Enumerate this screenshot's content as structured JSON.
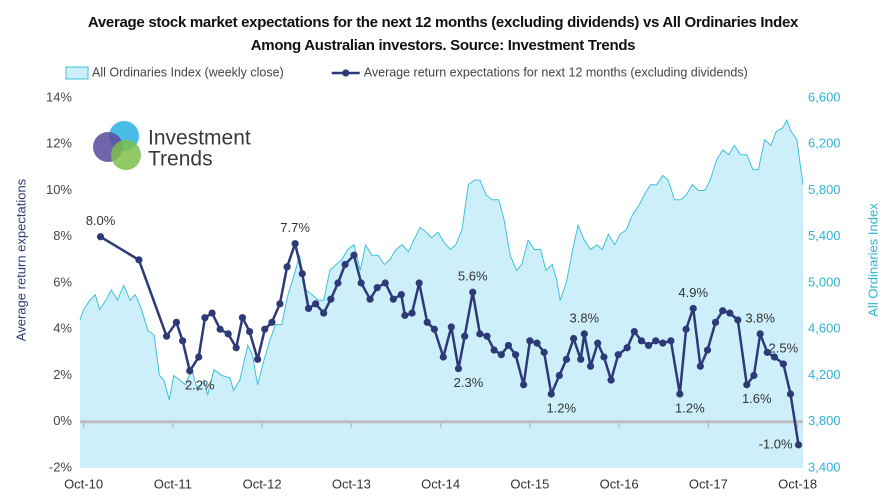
{
  "chart_data": {
    "type": "combo",
    "title": "Average stock market expectations for the next 12 months (excluding dividends) vs All Ordinaries Index",
    "subtitle": "Among Australian investors. Source: Investment Trends",
    "logo_text": [
      "Investment",
      "Trends"
    ],
    "y_label": "Average return expectations",
    "y2_label": "All Ordinaries Index",
    "xlim": [
      2010.71,
      2018.81
    ],
    "xticks": [
      {
        "value": 2010.75,
        "label": "Oct-10"
      },
      {
        "value": 2011.75,
        "label": "Oct-11"
      },
      {
        "value": 2012.75,
        "label": "Oct-12"
      },
      {
        "value": 2013.75,
        "label": "Oct-13"
      },
      {
        "value": 2014.75,
        "label": "Oct-14"
      },
      {
        "value": 2015.75,
        "label": "Oct-15"
      },
      {
        "value": 2016.75,
        "label": "Oct-16"
      },
      {
        "value": 2017.75,
        "label": "Oct-17"
      },
      {
        "value": 2018.75,
        "label": "Oct-18"
      }
    ],
    "ylim": [
      -2,
      14
    ],
    "yticks": [
      {
        "value": -2,
        "label": "-2%"
      },
      {
        "value": 0,
        "label": "0%"
      },
      {
        "value": 2,
        "label": "2%"
      },
      {
        "value": 4,
        "label": "4%"
      },
      {
        "value": 6,
        "label": "6%"
      },
      {
        "value": 8,
        "label": "8%"
      },
      {
        "value": 10,
        "label": "10%"
      },
      {
        "value": 12,
        "label": "12%"
      },
      {
        "value": 14,
        "label": "14%"
      }
    ],
    "y2lim": [
      3400,
      6600
    ],
    "y2ticks": [
      {
        "value": 3400,
        "label": "3,400"
      },
      {
        "value": 3800,
        "label": "3,800"
      },
      {
        "value": 4200,
        "label": "4,200"
      },
      {
        "value": 4600,
        "label": "4,600"
      },
      {
        "value": 5000,
        "label": "5,000"
      },
      {
        "value": 5400,
        "label": "5,400"
      },
      {
        "value": 5800,
        "label": "5,800"
      },
      {
        "value": 6200,
        "label": "6,200"
      },
      {
        "value": 6600,
        "label": "6,600"
      }
    ],
    "series": [
      {
        "name": "All Ordinaries Index (weekly close)",
        "type": "area",
        "axis": "y2",
        "color": "#3fc0dd",
        "x": [
          2010.71,
          2010.75,
          2010.82,
          2010.88,
          2010.93,
          2011.0,
          2011.06,
          2011.13,
          2011.2,
          2011.27,
          2011.33,
          2011.4,
          2011.47,
          2011.54,
          2011.6,
          2011.65,
          2011.71,
          2011.76,
          2011.83,
          2011.89,
          2011.96,
          2012.03,
          2012.1,
          2012.14,
          2012.21,
          2012.3,
          2012.39,
          2012.43,
          2012.5,
          2012.59,
          2012.64,
          2012.7,
          2012.77,
          2012.84,
          2012.9,
          2012.97,
          2013.04,
          2013.11,
          2013.17,
          2013.24,
          2013.31,
          2013.38,
          2013.44,
          2013.51,
          2013.58,
          2013.64,
          2013.71,
          2013.78,
          2013.85,
          2013.91,
          2013.98,
          2014.05,
          2014.12,
          2014.18,
          2014.25,
          2014.32,
          2014.39,
          2014.45,
          2014.52,
          2014.59,
          2014.65,
          2014.72,
          2014.79,
          2014.86,
          2014.92,
          2014.99,
          2015.06,
          2015.13,
          2015.19,
          2015.26,
          2015.33,
          2015.4,
          2015.46,
          2015.53,
          2015.6,
          2015.66,
          2015.73,
          2015.8,
          2015.87,
          2015.93,
          2016.0,
          2016.05,
          2016.09,
          2016.16,
          2016.23,
          2016.29,
          2016.36,
          2016.43,
          2016.5,
          2016.56,
          2016.63,
          2016.7,
          2016.76,
          2016.83,
          2016.9,
          2016.97,
          2017.03,
          2017.1,
          2017.17,
          2017.24,
          2017.3,
          2017.37,
          2017.44,
          2017.5,
          2017.57,
          2017.64,
          2017.71,
          2017.77,
          2017.84,
          2017.91,
          2017.98,
          2018.04,
          2018.11,
          2018.18,
          2018.25,
          2018.31,
          2018.38,
          2018.45,
          2018.51,
          2018.58,
          2018.63,
          2018.67,
          2018.74,
          2018.78,
          2018.81
        ],
        "values": [
          4680,
          4770,
          4850,
          4900,
          4770,
          4850,
          4940,
          4850,
          4980,
          4850,
          4900,
          4770,
          4590,
          4550,
          4200,
          4160,
          3990,
          4200,
          4160,
          4120,
          4250,
          4070,
          4160,
          4030,
          4250,
          4200,
          4180,
          4070,
          4160,
          4460,
          4380,
          4120,
          4330,
          4510,
          4640,
          4640,
          4900,
          5070,
          5240,
          4940,
          4900,
          4850,
          4850,
          5110,
          5160,
          5200,
          5290,
          5330,
          5110,
          5330,
          5240,
          5240,
          5160,
          5200,
          5290,
          5330,
          5270,
          5370,
          5480,
          5440,
          5390,
          5440,
          5350,
          5290,
          5330,
          5460,
          5850,
          5890,
          5890,
          5760,
          5720,
          5720,
          5550,
          5240,
          5110,
          5160,
          5370,
          5290,
          5290,
          5110,
          5160,
          5030,
          4850,
          5010,
          5290,
          5500,
          5370,
          5290,
          5330,
          5290,
          5420,
          5330,
          5420,
          5460,
          5590,
          5670,
          5760,
          5850,
          5850,
          5930,
          5890,
          5720,
          5720,
          5760,
          5850,
          5800,
          5800,
          5890,
          6060,
          6150,
          6110,
          6190,
          6110,
          6110,
          5980,
          5980,
          6240,
          6190,
          6310,
          6340,
          6410,
          6320,
          6240,
          6020,
          5850
        ]
      },
      {
        "name": "Average return expectations for next 12 months (excluding dividends)",
        "type": "line",
        "axis": "y",
        "color": "#2e3a78",
        "x": [
          2010.94,
          2011.37,
          2011.68,
          2011.79,
          2011.86,
          2011.94,
          2012.04,
          2012.11,
          2012.19,
          2012.28,
          2012.37,
          2012.46,
          2012.53,
          2012.61,
          2012.7,
          2012.78,
          2012.86,
          2012.95,
          2013.03,
          2013.12,
          2013.2,
          2013.27,
          2013.35,
          2013.44,
          2013.52,
          2013.6,
          2013.68,
          2013.78,
          2013.86,
          2013.96,
          2014.04,
          2014.13,
          2014.22,
          2014.31,
          2014.35,
          2014.43,
          2014.51,
          2014.6,
          2014.68,
          2014.78,
          2014.87,
          2014.95,
          2015.02,
          2015.11,
          2015.19,
          2015.27,
          2015.35,
          2015.43,
          2015.51,
          2015.59,
          2015.68,
          2015.75,
          2015.83,
          2015.91,
          2015.99,
          2016.08,
          2016.16,
          2016.24,
          2016.32,
          2016.36,
          2016.43,
          2016.51,
          2016.58,
          2016.66,
          2016.74,
          2016.84,
          2016.92,
          2017.0,
          2017.08,
          2017.16,
          2017.24,
          2017.33,
          2017.43,
          2017.5,
          2017.58,
          2017.66,
          2017.74,
          2017.83,
          2017.91,
          2017.99,
          2018.08,
          2018.18,
          2018.26,
          2018.33,
          2018.41,
          2018.49,
          2018.59,
          2018.67,
          2018.76
        ],
        "values": [
          8.0,
          7.0,
          3.7,
          4.3,
          3.5,
          2.2,
          2.8,
          4.5,
          4.7,
          4.0,
          3.8,
          3.2,
          4.5,
          3.9,
          2.7,
          4.0,
          4.3,
          5.1,
          6.7,
          7.7,
          6.4,
          4.9,
          5.1,
          4.7,
          5.3,
          6.0,
          6.8,
          7.2,
          6.0,
          5.3,
          5.8,
          6.0,
          5.3,
          5.5,
          4.6,
          4.7,
          6.0,
          4.3,
          4.0,
          2.8,
          4.1,
          2.3,
          3.7,
          5.6,
          3.8,
          3.7,
          3.1,
          2.9,
          3.3,
          2.9,
          1.6,
          3.5,
          3.4,
          3.0,
          1.2,
          2.0,
          2.7,
          3.6,
          2.7,
          3.8,
          2.4,
          3.4,
          2.8,
          1.8,
          2.9,
          3.2,
          3.9,
          3.5,
          3.3,
          3.5,
          3.4,
          3.5,
          1.2,
          4.0,
          4.9,
          2.4,
          3.1,
          4.3,
          4.8,
          4.7,
          4.4,
          1.6,
          2.0,
          3.8,
          3.0,
          2.8,
          2.5,
          1.2,
          -1.0
        ],
        "value_labels": [
          "8.0%",
          null,
          null,
          null,
          null,
          "2.2%",
          null,
          null,
          null,
          null,
          null,
          null,
          null,
          null,
          null,
          null,
          null,
          null,
          null,
          "7.7%",
          null,
          null,
          null,
          null,
          null,
          null,
          null,
          null,
          null,
          null,
          null,
          null,
          null,
          null,
          null,
          null,
          null,
          null,
          null,
          null,
          null,
          "2.3%",
          null,
          "5.6%",
          null,
          null,
          null,
          null,
          null,
          null,
          null,
          null,
          null,
          null,
          "1.2%",
          null,
          null,
          null,
          null,
          "3.8%",
          null,
          null,
          null,
          null,
          null,
          null,
          null,
          null,
          null,
          null,
          null,
          null,
          "1.2%",
          null,
          "4.9%",
          null,
          null,
          null,
          null,
          null,
          null,
          "1.6%",
          null,
          "3.8%",
          null,
          null,
          "2.5%",
          null,
          "-1.0%"
        ]
      }
    ]
  }
}
